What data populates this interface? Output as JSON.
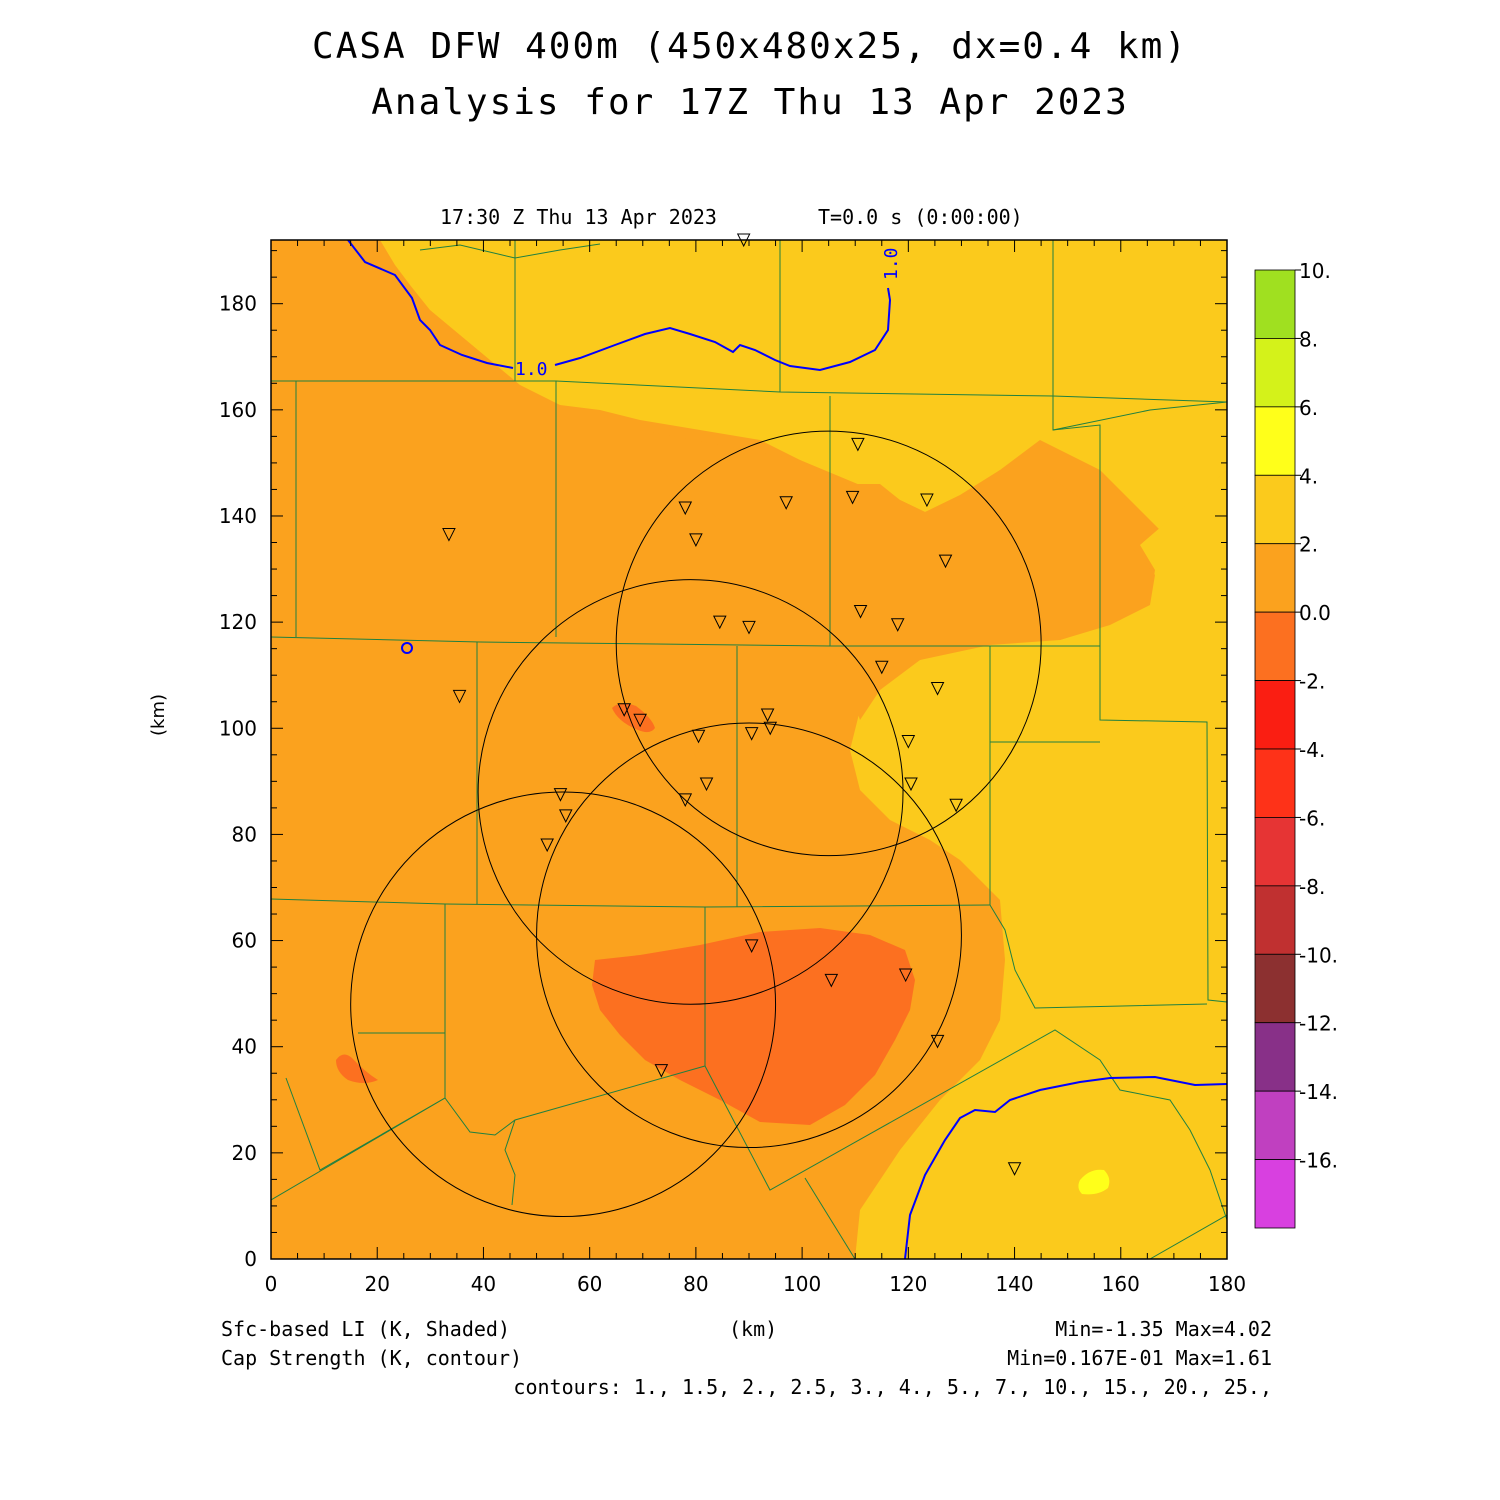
{
  "header": {
    "title_line1": "CASA DFW 400m (450x480x25, dx=0.4 km)",
    "title_line2": "Analysis for 17Z Thu 13 Apr 2023",
    "valid_time": "17:30 Z Thu 13 Apr 2023",
    "forecast_time": "T=0.0 s (0:00:00)"
  },
  "axes": {
    "xlabel": "(km)",
    "ylabel": "(km)",
    "xlim": [
      0,
      180
    ],
    "ylim": [
      0,
      192
    ],
    "xticks": [
      "0",
      "20",
      "40",
      "60",
      "80",
      "100",
      "120",
      "140",
      "160",
      "180"
    ],
    "yticks": [
      "0",
      "20",
      "40",
      "60",
      "80",
      "100",
      "120",
      "140",
      "160",
      "180"
    ]
  },
  "colorbar": {
    "labels": [
      "10.",
      "8.",
      "6.",
      "4.",
      "2.",
      "0.0",
      "-2.",
      "-4.",
      "-6.",
      "-8.",
      "-10.",
      "-12.",
      "-14.",
      "-16."
    ],
    "colors": [
      "#a0e020",
      "#d4f21a",
      "#ffff1a",
      "#fbca1c",
      "#fba21e",
      "#fc7020",
      "#fa1e12",
      "#fe3218",
      "#e63434",
      "#c03030",
      "#8c3030",
      "#883088",
      "#c040c0",
      "#d840e0"
    ]
  },
  "colors": {
    "li_0_2": "#fba21e",
    "li_2_4": "#fbca1c",
    "li_4_6": "#ffff1a",
    "li_neg2_0": "#fc7020",
    "county_lines": "#208040",
    "cap_contour": "#0000ff",
    "radar_rings": "#000000"
  },
  "contour_labels": [
    "1.0",
    "1.0"
  ],
  "footer": {
    "left1": "Sfc-based LI (K, Shaded)",
    "left2": "Cap Strength (K, contour)",
    "center": "(km)",
    "right1": "Min=-1.35 Max=4.02",
    "right2": "Min=0.167E-01 Max=1.61",
    "right3": "contours: 1., 1.5, 2., 2.5, 3., 4., 5., 7., 10., 15., 20., 25.,"
  },
  "chart_data": {
    "type": "contour_map",
    "shaded_field": "Sfc-based LI (K)",
    "shaded_min": -1.35,
    "shaded_max": 4.02,
    "contour_field": "Cap Strength (K)",
    "contour_min": 0.0167,
    "contour_max": 1.61,
    "contour_levels": [
      1,
      1.5,
      2,
      2.5,
      3,
      4,
      5,
      7,
      10,
      15,
      20,
      25
    ],
    "radar_rings": [
      {
        "center_km": [
          105,
          116
        ],
        "radius_km": 40
      },
      {
        "center_km": [
          79,
          88
        ],
        "radius_km": 40
      },
      {
        "center_km": [
          90,
          61
        ],
        "radius_km": 40
      },
      {
        "center_km": [
          55,
          48
        ],
        "radius_km": 40
      }
    ],
    "stations_km": [
      [
        89,
        192
      ],
      [
        33.5,
        136.5
      ],
      [
        78,
        141.5
      ],
      [
        80,
        135.5
      ],
      [
        97,
        142.5
      ],
      [
        110.5,
        153.5
      ],
      [
        109.5,
        143.5
      ],
      [
        123.5,
        143
      ],
      [
        127,
        131.5
      ],
      [
        111,
        122
      ],
      [
        118,
        119.5
      ],
      [
        84.5,
        120
      ],
      [
        90,
        119
      ],
      [
        115,
        111.5
      ],
      [
        125.5,
        107.5
      ],
      [
        35.5,
        106
      ],
      [
        66.5,
        103.5
      ],
      [
        69.5,
        101.5
      ],
      [
        93.5,
        102.5
      ],
      [
        80.5,
        98.5
      ],
      [
        90.5,
        99
      ],
      [
        94,
        100
      ],
      [
        120,
        97.5
      ],
      [
        54.5,
        87.5
      ],
      [
        55.5,
        83.5
      ],
      [
        52,
        78
      ],
      [
        78,
        86.5
      ],
      [
        82,
        89.5
      ],
      [
        120.5,
        89.5
      ],
      [
        129,
        85.5
      ],
      [
        90.5,
        59
      ],
      [
        105.5,
        52.5
      ],
      [
        119.5,
        53.5
      ],
      [
        125.5,
        41
      ],
      [
        73.5,
        35.5
      ],
      [
        140,
        17
      ]
    ]
  }
}
